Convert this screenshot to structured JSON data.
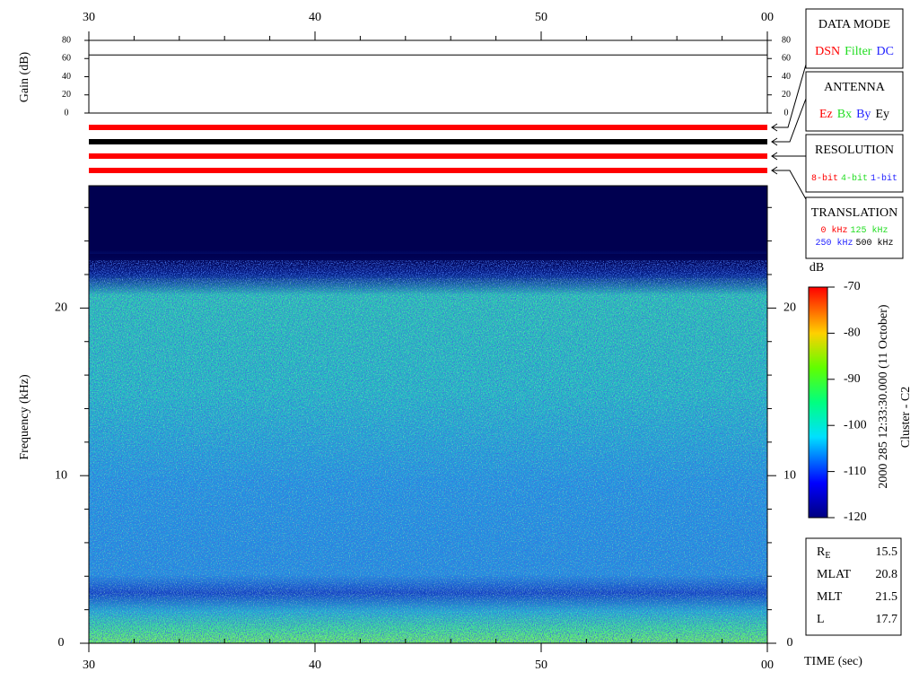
{
  "chart_data": [
    {
      "type": "line",
      "ylabel": "Gain (dB)",
      "xlim": [
        30,
        60
      ],
      "xticks": [
        30,
        40,
        50,
        {
          "value": 60,
          "label": "00"
        }
      ],
      "xminorticks": [
        32,
        34,
        36,
        38,
        42,
        44,
        46,
        48,
        52,
        54,
        56,
        58
      ],
      "ylim": [
        0,
        80
      ],
      "yticks": [
        0,
        20,
        40,
        60,
        80
      ],
      "series": [
        {
          "x": [
            30,
            60
          ],
          "values": [
            64,
            64
          ],
          "color": "#000000"
        }
      ]
    },
    {
      "type": "spectrogram",
      "ylabel": "Frequency (kHz)",
      "xlabel": "TIME (sec)",
      "xlim": [
        30,
        60
      ],
      "xticks": [
        30,
        40,
        50,
        {
          "value": 60,
          "label": "00"
        }
      ],
      "xminorticks": [
        32,
        34,
        36,
        38,
        42,
        44,
        46,
        48,
        52,
        54,
        56,
        58
      ],
      "ylim": [
        0,
        27.3
      ],
      "yticks": [
        0,
        10,
        20
      ],
      "yminorticks": [
        2,
        4,
        6,
        8,
        12,
        14,
        16,
        18,
        22,
        24,
        26
      ],
      "colorbar": {
        "label": "dB",
        "lim": [
          -120,
          -70
        ],
        "ticks": [
          -70,
          -80,
          -90,
          -100,
          -110,
          -120
        ]
      }
    }
  ],
  "status_bars": [
    {
      "color": "#ff0000"
    },
    {
      "color": "#000000"
    },
    {
      "color": "#ff0000"
    },
    {
      "color": "#ff0000"
    }
  ],
  "panels": [
    {
      "title": "DATA MODE",
      "items": [
        {
          "text": "DSN",
          "color": "#ff0000"
        },
        {
          "text": "Filter",
          "color": "#22dd22"
        },
        {
          "text": "DC",
          "color": "#2222ff"
        }
      ]
    },
    {
      "title": "ANTENNA",
      "items": [
        {
          "text": "Ez",
          "color": "#ff0000"
        },
        {
          "text": "Bx",
          "color": "#22dd22"
        },
        {
          "text": "By",
          "color": "#2222ff"
        },
        {
          "text": "Ey",
          "color": "#000000"
        }
      ]
    },
    {
      "title": "RESOLUTION",
      "items": [
        {
          "text": "8-bit",
          "color": "#ff0000"
        },
        {
          "text": "4-bit",
          "color": "#22dd22"
        },
        {
          "text": "1-bit",
          "color": "#2222ff"
        }
      ]
    },
    {
      "title": "TRANSLATION",
      "items": [
        {
          "text": "0 kHz",
          "color": "#ff0000"
        },
        {
          "text": "125 kHz",
          "color": "#22dd22"
        },
        {
          "text": "250 kHz",
          "color": "#2222ff"
        },
        {
          "text": "500 kHz",
          "color": "#000000"
        }
      ]
    }
  ],
  "side_text": [
    "2000 285 12:33:30.000 (11 October)",
    "Cluster - C2"
  ],
  "info": [
    {
      "label": "R",
      "sub": "E",
      "value": 15.5
    },
    {
      "label": "MLAT",
      "value": 20.8
    },
    {
      "label": "MLT",
      "value": 21.5
    },
    {
      "label": "L",
      "value": 17.7
    }
  ]
}
